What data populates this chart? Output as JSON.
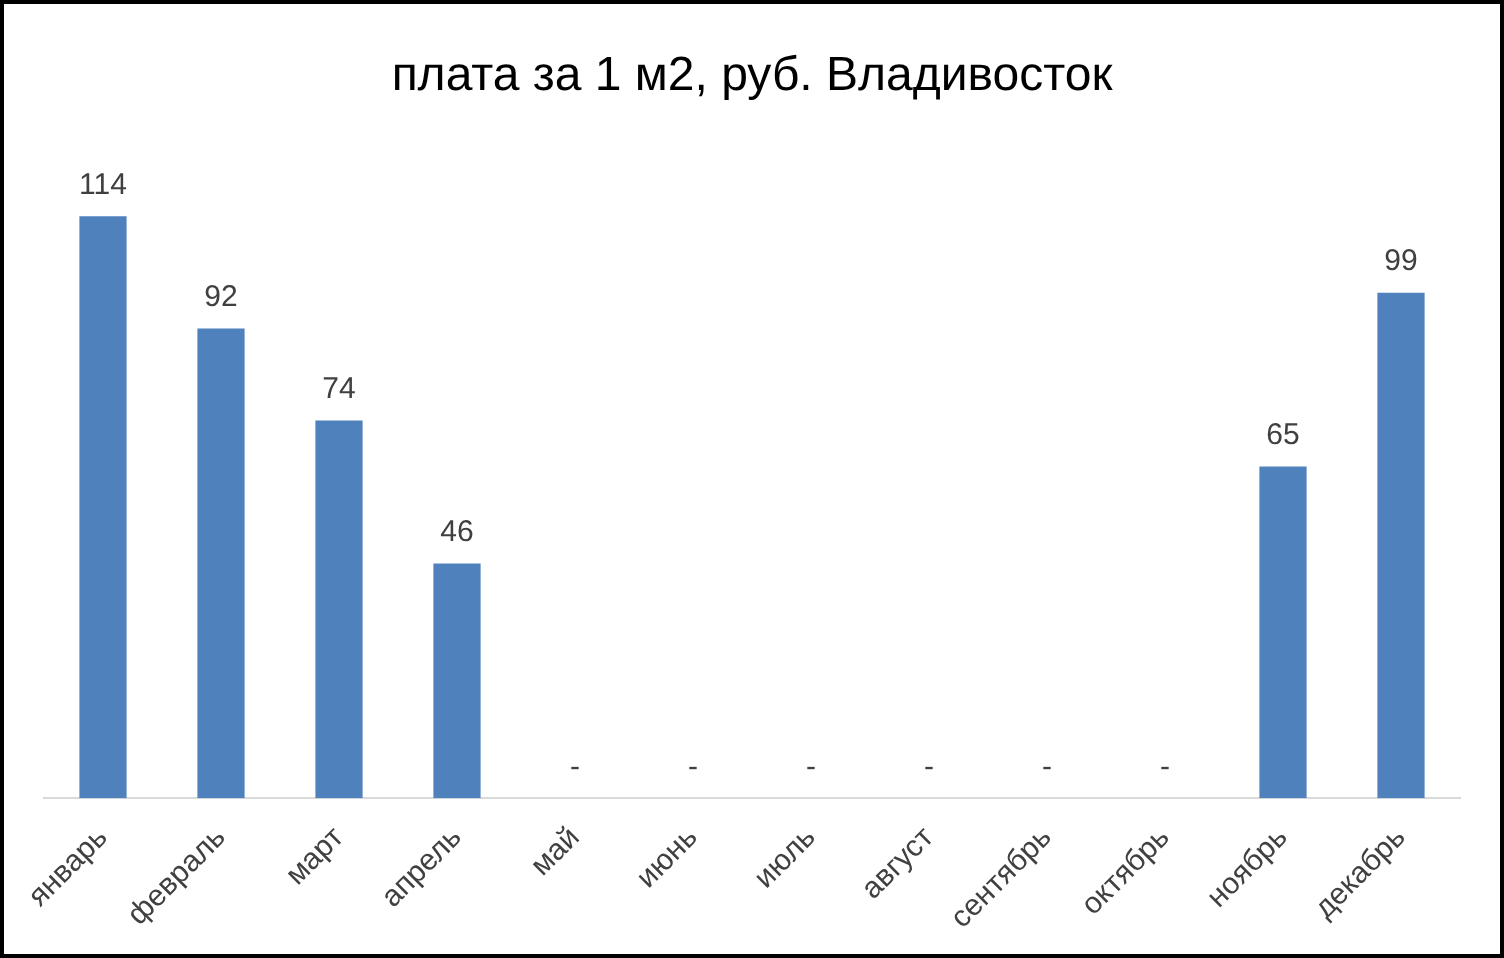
{
  "chart_data": {
    "type": "bar",
    "title": "плата за 1 м2, руб. Владивосток",
    "categories": [
      "январь",
      "февраль",
      "март",
      "апрель",
      "май",
      "июнь",
      "июль",
      "август",
      "сентябрь",
      "октябрь",
      "ноябрь",
      "декабрь"
    ],
    "values": [
      114,
      92,
      74,
      46,
      0,
      0,
      0,
      0,
      0,
      0,
      65,
      99
    ],
    "value_labels": [
      "114",
      "92",
      "74",
      "46",
      "-",
      "-",
      "-",
      "-",
      "-",
      "-",
      "65",
      "99"
    ],
    "color": "#4f81bd",
    "grid": false,
    "legend": false
  }
}
